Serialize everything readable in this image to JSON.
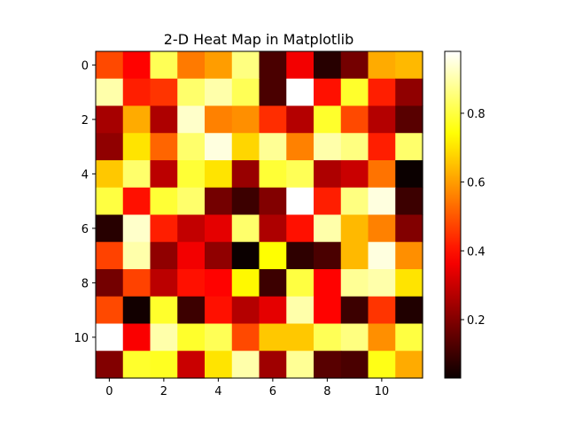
{
  "chart_data": {
    "type": "heatmap",
    "title": "2-D Heat Map in Matplotlib",
    "colormap": "hot",
    "xlabel": "",
    "ylabel": "",
    "rows": 12,
    "cols": 12,
    "xlim": [
      -0.5,
      11.5
    ],
    "ylim": [
      -0.5,
      11.5
    ],
    "x_ticks": [
      0,
      2,
      4,
      6,
      8,
      10
    ],
    "y_ticks": [
      0,
      2,
      4,
      6,
      8,
      10
    ],
    "x_tick_labels": [
      "0",
      "2",
      "4",
      "6",
      "8",
      "10"
    ],
    "y_tick_labels": [
      "0",
      "2",
      "4",
      "6",
      "8",
      "10"
    ],
    "colorbar": {
      "range": [
        0.03,
        0.98
      ],
      "ticks": [
        0.2,
        0.4,
        0.6,
        0.8
      ],
      "tick_labels": [
        "0.2",
        "0.4",
        "0.6",
        "0.8"
      ]
    },
    "values": [
      [
        0.48,
        0.38,
        0.82,
        0.55,
        0.6,
        0.86,
        0.12,
        0.36,
        0.07,
        0.18,
        0.62,
        0.64
      ],
      [
        0.9,
        0.42,
        0.45,
        0.84,
        0.9,
        0.82,
        0.12,
        0.98,
        0.4,
        0.78,
        0.42,
        0.22
      ],
      [
        0.25,
        0.62,
        0.26,
        0.93,
        0.56,
        0.58,
        0.44,
        0.27,
        0.78,
        0.48,
        0.27,
        0.14
      ],
      [
        0.22,
        0.7,
        0.52,
        0.84,
        0.95,
        0.68,
        0.88,
        0.56,
        0.9,
        0.86,
        0.42,
        0.84
      ],
      [
        0.66,
        0.84,
        0.28,
        0.79,
        0.7,
        0.23,
        0.79,
        0.82,
        0.26,
        0.3,
        0.54,
        0.03
      ],
      [
        0.8,
        0.4,
        0.79,
        0.84,
        0.18,
        0.1,
        0.2,
        0.98,
        0.42,
        0.86,
        0.95,
        0.1
      ],
      [
        0.07,
        0.93,
        0.42,
        0.29,
        0.34,
        0.84,
        0.26,
        0.4,
        0.9,
        0.64,
        0.56,
        0.2
      ],
      [
        0.47,
        0.9,
        0.22,
        0.36,
        0.22,
        0.03,
        0.74,
        0.08,
        0.12,
        0.64,
        0.95,
        0.58
      ],
      [
        0.18,
        0.47,
        0.28,
        0.4,
        0.38,
        0.73,
        0.1,
        0.8,
        0.38,
        0.88,
        0.9,
        0.7
      ],
      [
        0.48,
        0.04,
        0.78,
        0.1,
        0.4,
        0.27,
        0.34,
        0.9,
        0.38,
        0.1,
        0.45,
        0.06
      ],
      [
        0.98,
        0.37,
        0.9,
        0.78,
        0.82,
        0.48,
        0.66,
        0.66,
        0.82,
        0.86,
        0.58,
        0.8
      ],
      [
        0.2,
        0.78,
        0.77,
        0.3,
        0.7,
        0.9,
        0.24,
        0.88,
        0.14,
        0.12,
        0.76,
        0.62
      ]
    ]
  }
}
